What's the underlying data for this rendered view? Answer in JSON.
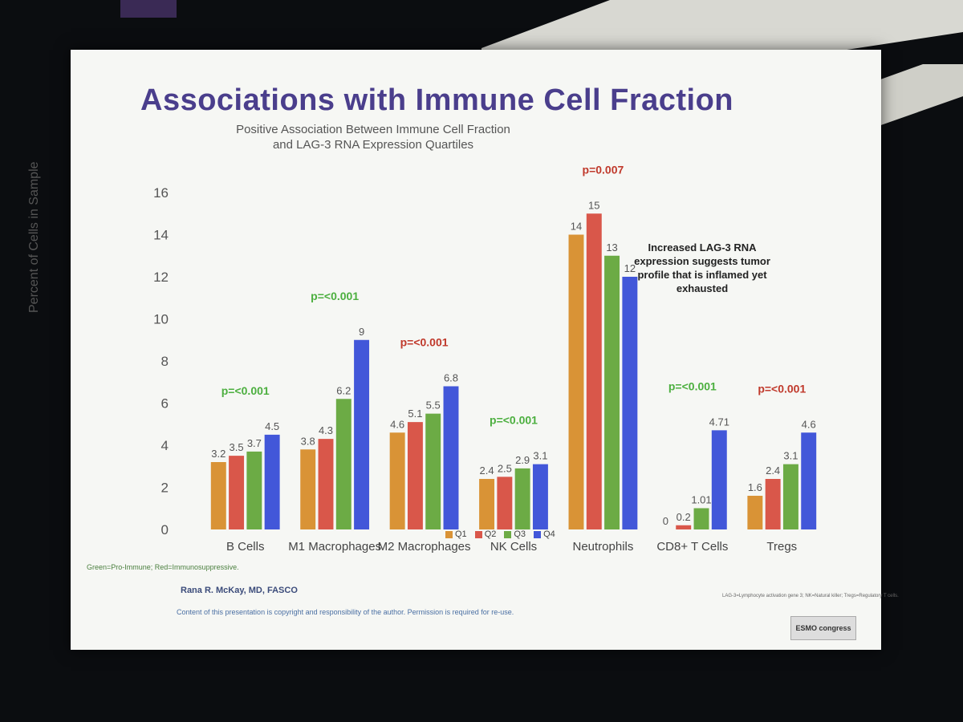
{
  "slide": {
    "title": "Associations with Immune Cell Fraction",
    "subtitle_line1": "Positive Association Between Immune Cell Fraction",
    "subtitle_line2": "and LAG-3 RNA Expression Quartiles",
    "side_note_line1": "Increased LAG-3 RNA",
    "side_note_line2": "expression suggests tumor",
    "side_note_line3": "profile that is inflamed yet",
    "side_note_line4": "exhausted",
    "footnote": "Green=Pro-Immune; Red=Immunosuppressive.",
    "author": "Rana R. McKay, MD, FASCO",
    "copyright": "Content of this presentation is copyright and responsibility of the author. Permission is required for re-use.",
    "abbrev_note": "LAG-3=Lymphocyte activation gene 3; NK=Natural killer; Tregs=Regulatory T cells.",
    "congress_logo": "ESMO congress"
  },
  "chart_data": {
    "type": "bar",
    "ylabel": "Percent of Cells in Sample",
    "ylim": [
      0,
      16
    ],
    "yticks": [
      0,
      2,
      4,
      6,
      8,
      10,
      12,
      14,
      16
    ],
    "categories": [
      "B Cells",
      "M1 Macrophages",
      "M2 Macrophages",
      "NK Cells",
      "Neutrophils",
      "CD8+ T Cells",
      "Tregs"
    ],
    "series": [
      {
        "name": "Q1",
        "color": "#d99336",
        "values": [
          3.2,
          3.8,
          4.6,
          2.4,
          14,
          0,
          1.6
        ]
      },
      {
        "name": "Q2",
        "color": "#d9574a",
        "values": [
          3.5,
          4.3,
          5.1,
          2.5,
          15,
          0.2,
          2.4
        ]
      },
      {
        "name": "Q3",
        "color": "#6cab45",
        "values": [
          3.7,
          6.2,
          5.5,
          2.9,
          13,
          1.01,
          3.1
        ]
      },
      {
        "name": "Q4",
        "color": "#4257d9",
        "values": [
          4.5,
          9,
          6.8,
          3.1,
          12,
          4.71,
          4.6
        ]
      }
    ],
    "value_labels": [
      [
        "3.2",
        "3.5",
        "3.7",
        "4.5"
      ],
      [
        "3.8",
        "4.3",
        "6.2",
        "9"
      ],
      [
        "4.6",
        "5.1",
        "5.5",
        "6.8"
      ],
      [
        "2.4",
        "2.5",
        "2.9",
        "3.1"
      ],
      [
        "14",
        "15",
        "13",
        "12"
      ],
      [
        "0",
        "0.2",
        "1.01",
        "4.71"
      ],
      [
        "1.6",
        "2.4",
        "3.1",
        "4.6"
      ]
    ],
    "pvalues": [
      {
        "text": "p=<0.001",
        "color": "#4caf3f"
      },
      {
        "text": "p=<0.001",
        "color": "#4caf3f"
      },
      {
        "text": "p=<0.001",
        "color": "#c0392b"
      },
      {
        "text": "p=<0.001",
        "color": "#4caf3f"
      },
      {
        "text": "p=0.007",
        "color": "#c0392b"
      },
      {
        "text": "p=<0.001",
        "color": "#4caf3f"
      },
      {
        "text": "p=<0.001",
        "color": "#c0392b"
      }
    ]
  }
}
